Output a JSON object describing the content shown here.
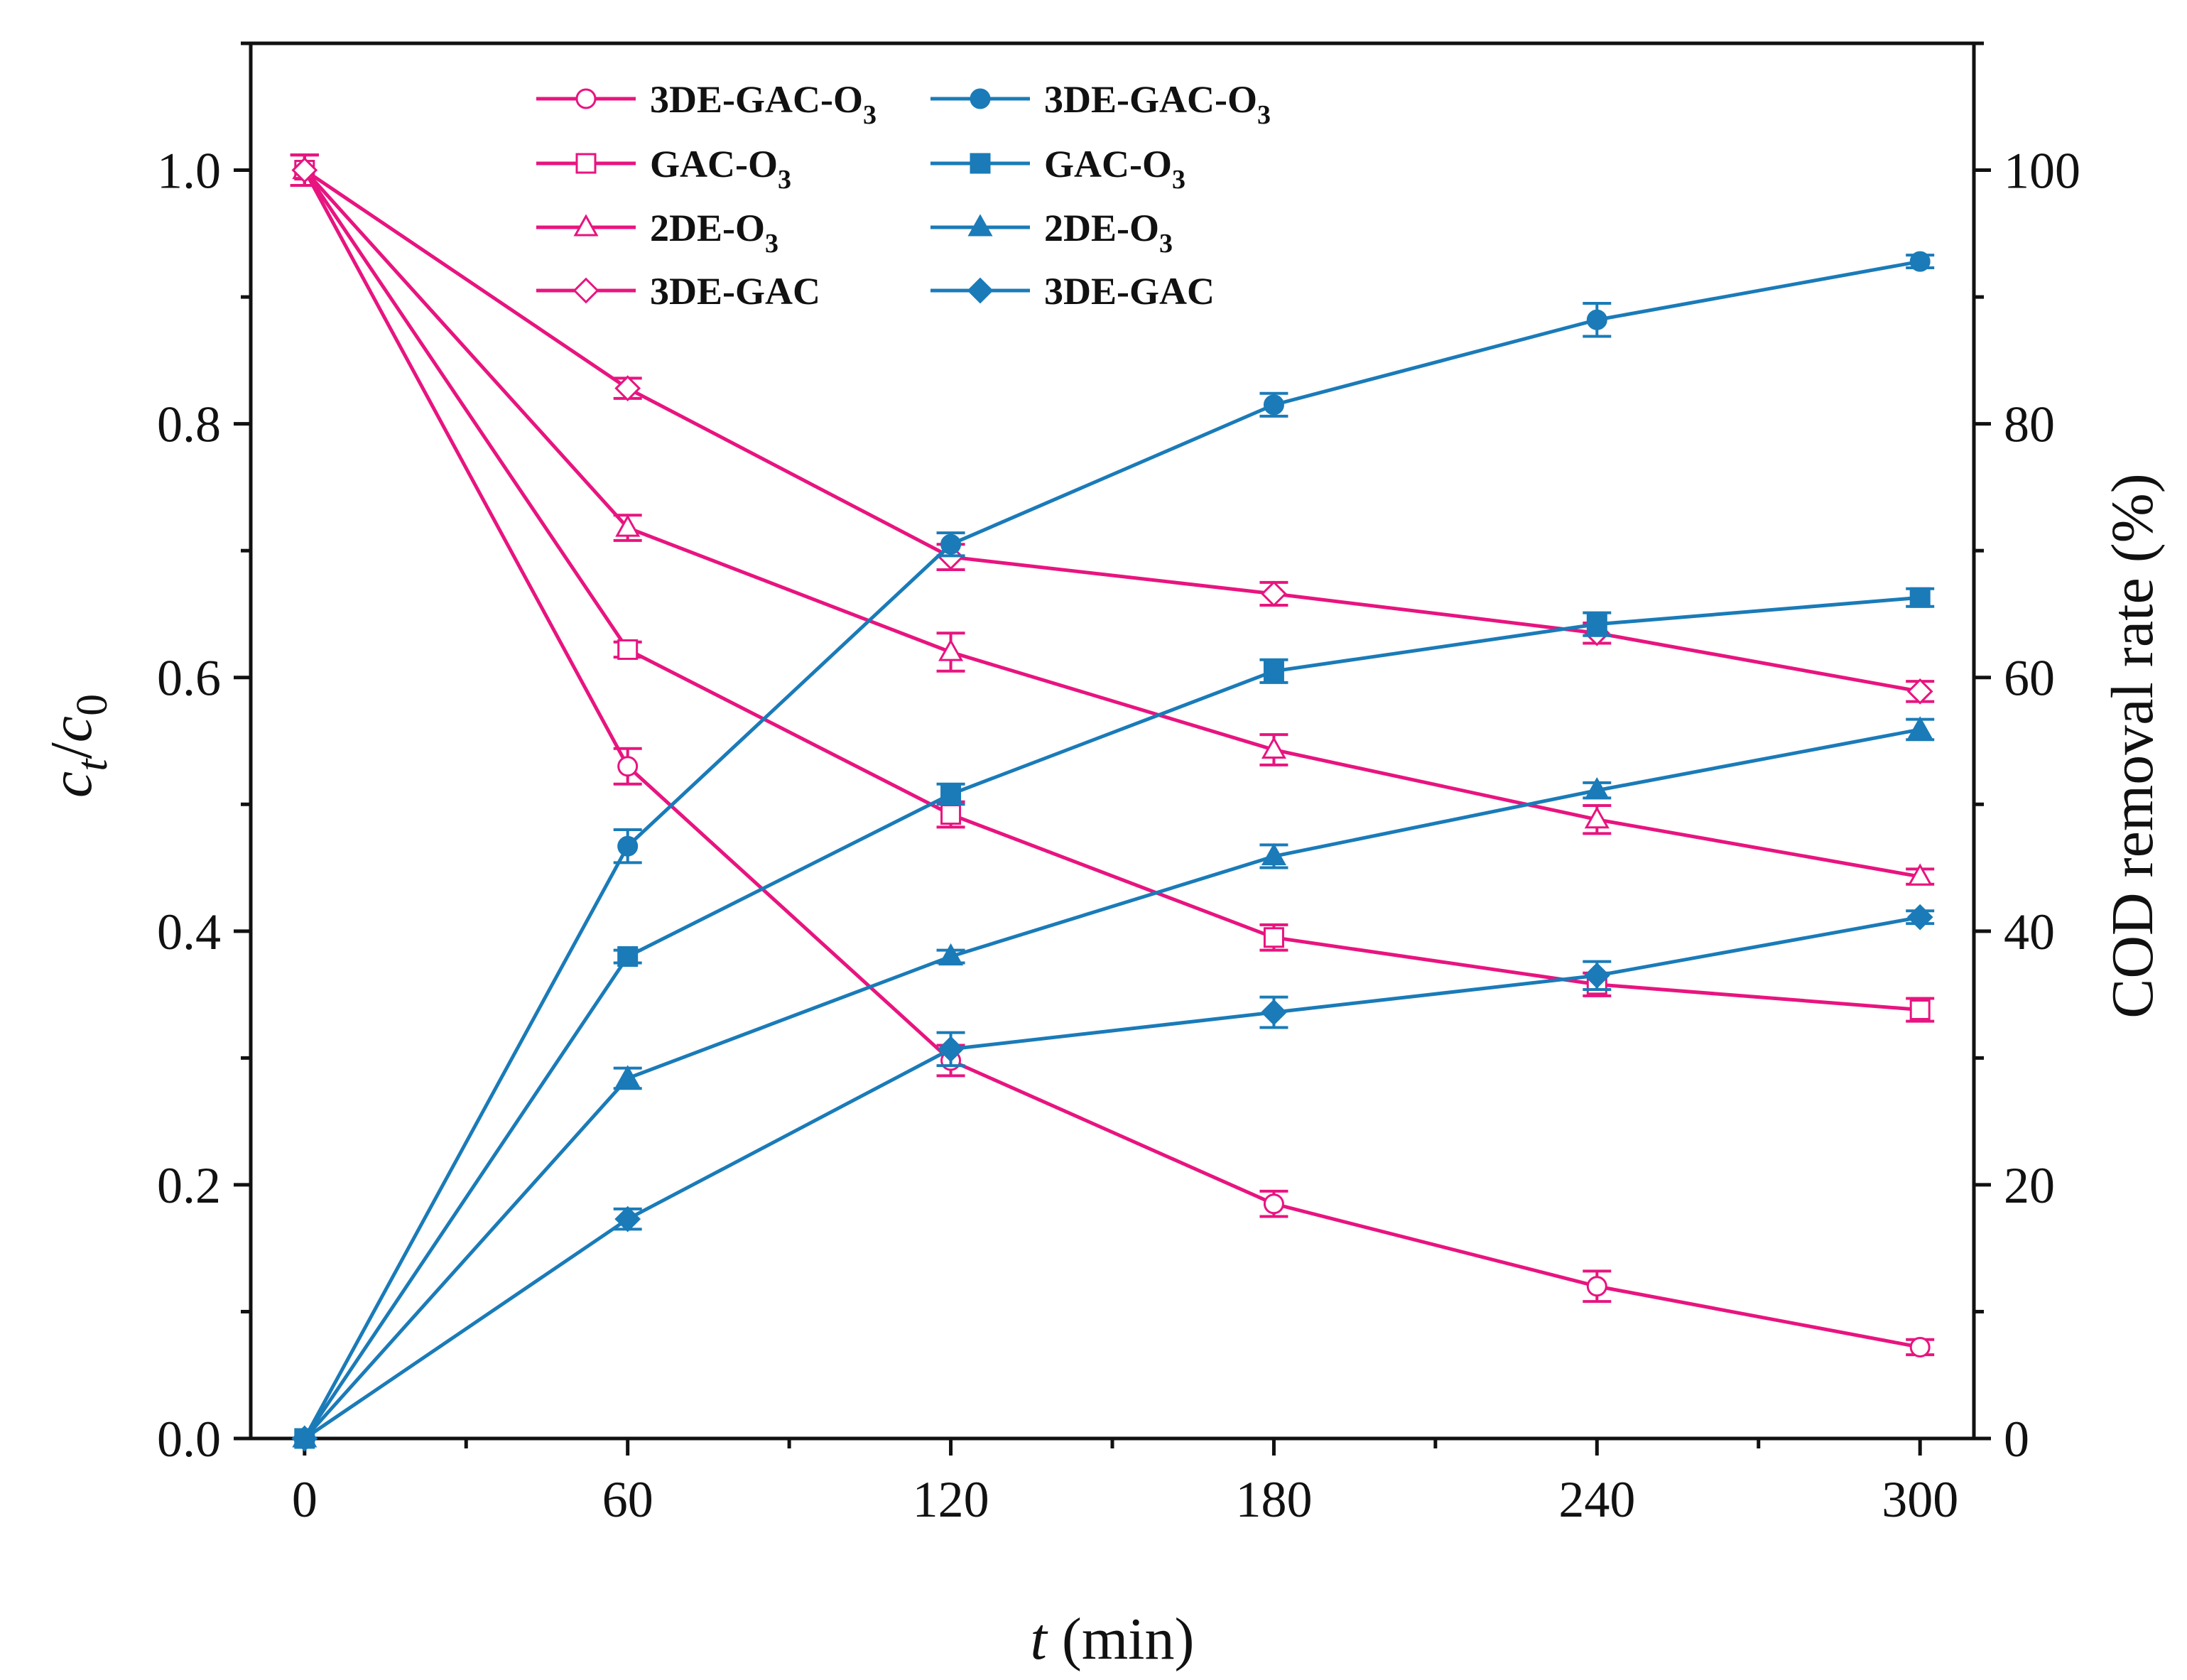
{
  "chart_data": {
    "type": "line",
    "x": [
      0,
      60,
      120,
      180,
      240,
      300
    ],
    "xlabel": {
      "var": "t",
      "unit": " (min)"
    },
    "ylabel_left": {
      "c": "c",
      "t": "t",
      "slash": "/",
      "c0": "c",
      "zero": "0"
    },
    "ylabel_right": "COD removal rate (%)",
    "xlim": [
      -10,
      310
    ],
    "ylim_left": [
      0,
      1.1
    ],
    "ylim_right": [
      0,
      110
    ],
    "xticks": [
      0,
      60,
      120,
      180,
      240,
      300
    ],
    "xtick_labels": [
      "0",
      "60",
      "120",
      "180",
      "240",
      "300"
    ],
    "yticks_left": [
      0,
      0.2,
      0.4,
      0.6,
      0.8,
      1.0
    ],
    "ytick_labels_left": [
      "0.0",
      "0.2",
      "0.4",
      "0.6",
      "0.8",
      "1.0"
    ],
    "yticks_right": [
      0,
      20,
      40,
      60,
      80,
      100
    ],
    "ytick_labels_right": [
      "0",
      "20",
      "40",
      "60",
      "80",
      "100"
    ],
    "legend_position": "top-center",
    "colors": {
      "pink": "#e8147f",
      "blue": "#1a7bb8"
    },
    "series": [
      {
        "name": "3DE-GAC-O",
        "sub": "3",
        "axis": "left",
        "color": "pink",
        "marker": "circle",
        "filled": false,
        "values": [
          1.0,
          0.53,
          0.298,
          0.185,
          0.12,
          0.072
        ],
        "errors": [
          0.012,
          0.014,
          0.012,
          0.01,
          0.012,
          0.006
        ]
      },
      {
        "name": "GAC-O",
        "sub": "3",
        "axis": "left",
        "color": "pink",
        "marker": "square",
        "filled": false,
        "values": [
          1.0,
          0.622,
          0.492,
          0.395,
          0.358,
          0.338
        ],
        "errors": [
          0.012,
          0.006,
          0.01,
          0.01,
          0.009,
          0.009
        ]
      },
      {
        "name": "2DE-O",
        "sub": "3",
        "axis": "left",
        "color": "pink",
        "marker": "triangle",
        "filled": false,
        "values": [
          1.0,
          0.718,
          0.62,
          0.543,
          0.488,
          0.443
        ],
        "errors": [
          0.012,
          0.01,
          0.015,
          0.012,
          0.011,
          0.006
        ]
      },
      {
        "name": "3DE-GAC",
        "sub": "",
        "axis": "left",
        "color": "pink",
        "marker": "diamond",
        "filled": false,
        "values": [
          1.0,
          0.828,
          0.695,
          0.666,
          0.635,
          0.589
        ],
        "errors": [
          0.012,
          0.008,
          0.01,
          0.009,
          0.008,
          0.008
        ]
      },
      {
        "name": "3DE-GAC-O",
        "sub": "3",
        "axis": "right",
        "color": "blue",
        "marker": "circle",
        "filled": true,
        "values": [
          0,
          46.7,
          70.5,
          81.5,
          88.2,
          92.8
        ],
        "errors": [
          0,
          1.3,
          0.9,
          0.9,
          1.3,
          0.5
        ]
      },
      {
        "name": "GAC-O",
        "sub": "3",
        "axis": "right",
        "color": "blue",
        "marker": "square",
        "filled": true,
        "values": [
          0,
          38.0,
          50.8,
          60.5,
          64.2,
          66.3
        ],
        "errors": [
          0,
          0.5,
          0.8,
          0.9,
          0.9,
          0.7
        ]
      },
      {
        "name": "2DE-O",
        "sub": "3",
        "axis": "right",
        "color": "blue",
        "marker": "triangle",
        "filled": true,
        "values": [
          0,
          28.4,
          38.0,
          45.9,
          51.1,
          55.9
        ],
        "errors": [
          0,
          0.8,
          0.5,
          0.9,
          0.6,
          0.8
        ]
      },
      {
        "name": "3DE-GAC",
        "sub": "",
        "axis": "right",
        "color": "blue",
        "marker": "diamond",
        "filled": true,
        "values": [
          0,
          17.3,
          30.7,
          33.6,
          36.5,
          41.1
        ],
        "errors": [
          0,
          0.8,
          1.3,
          1.2,
          1.1,
          0.5
        ]
      }
    ]
  }
}
